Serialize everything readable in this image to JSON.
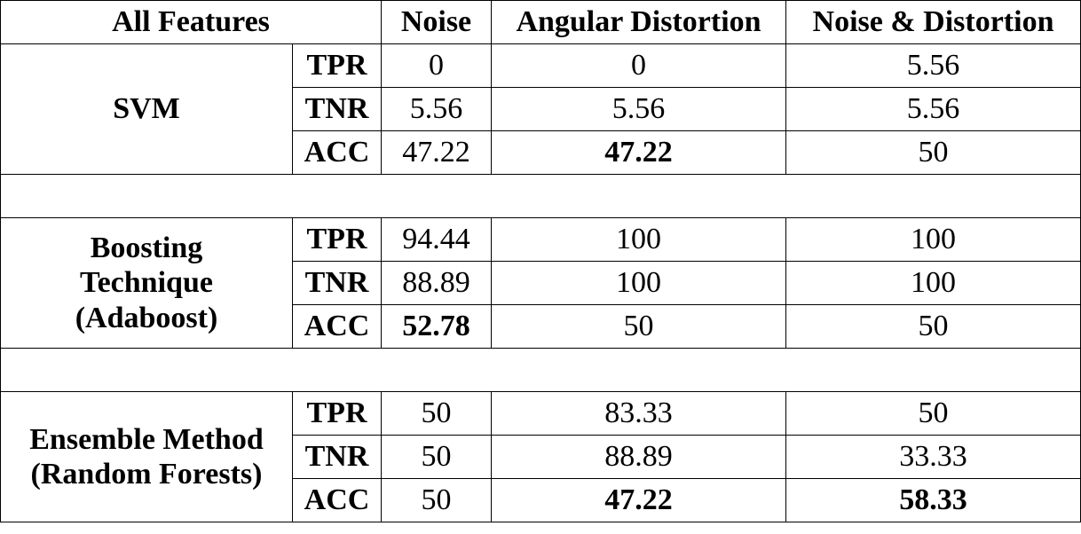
{
  "chart_data": {
    "type": "table",
    "header": {
      "corner": "All Features",
      "columns": [
        "Noise",
        "Angular Distortion",
        "Noise & Distortion"
      ]
    },
    "groups": [
      {
        "name_lines": [
          "SVM"
        ],
        "rows": [
          {
            "metric": "TPR",
            "values": [
              "0",
              "0",
              "5.56"
            ],
            "bold": [
              false,
              false,
              false
            ]
          },
          {
            "metric": "TNR",
            "values": [
              "5.56",
              "5.56",
              "5.56"
            ],
            "bold": [
              false,
              false,
              false
            ]
          },
          {
            "metric": "ACC",
            "values": [
              "47.22",
              "47.22",
              "50"
            ],
            "bold": [
              false,
              true,
              false
            ]
          }
        ]
      },
      {
        "name_lines": [
          "Boosting",
          "Technique",
          "(Adaboost)"
        ],
        "rows": [
          {
            "metric": "TPR",
            "values": [
              "94.44",
              "100",
              "100"
            ],
            "bold": [
              false,
              false,
              false
            ]
          },
          {
            "metric": "TNR",
            "values": [
              "88.89",
              "100",
              "100"
            ],
            "bold": [
              false,
              false,
              false
            ]
          },
          {
            "metric": "ACC",
            "values": [
              "52.78",
              "50",
              "50"
            ],
            "bold": [
              true,
              false,
              false
            ]
          }
        ]
      },
      {
        "name_lines": [
          "Ensemble Method",
          "(Random Forests)"
        ],
        "rows": [
          {
            "metric": "TPR",
            "values": [
              "50",
              "83.33",
              "50"
            ],
            "bold": [
              false,
              false,
              false
            ]
          },
          {
            "metric": "TNR",
            "values": [
              "50",
              "88.89",
              "33.33"
            ],
            "bold": [
              false,
              false,
              false
            ]
          },
          {
            "metric": "ACC",
            "values": [
              "50",
              "47.22",
              "58.33"
            ],
            "bold": [
              false,
              true,
              true
            ]
          }
        ]
      }
    ]
  }
}
